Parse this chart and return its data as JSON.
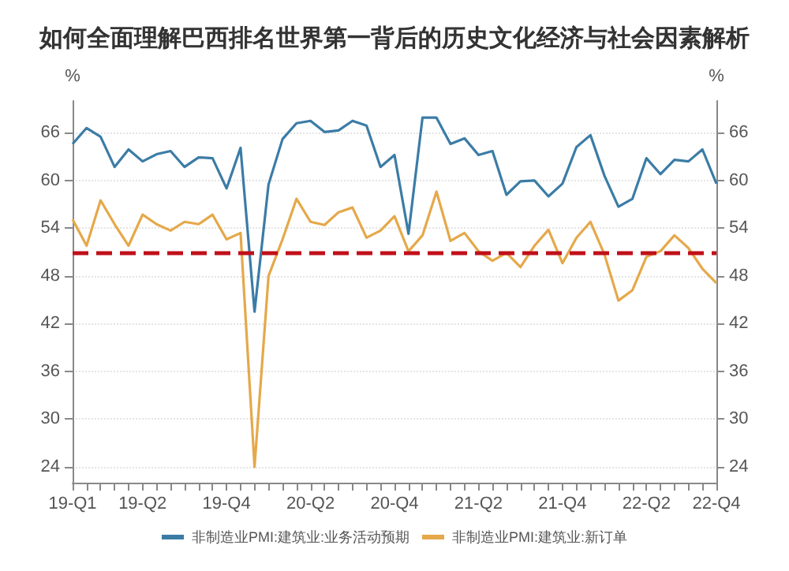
{
  "chart_data": {
    "type": "line",
    "title": "如何全面理解巴西排名世界第一背后的历史文化经济与社会因素解析",
    "ylabel": "%",
    "y2label": "%",
    "categories": [
      "19-Q1",
      null,
      null,
      null,
      null,
      "19-Q2",
      null,
      null,
      null,
      null,
      null,
      "19-Q4",
      null,
      null,
      null,
      null,
      null,
      "20-Q2",
      null,
      null,
      null,
      null,
      null,
      "20-Q4",
      null,
      null,
      null,
      null,
      null,
      "21-Q2",
      null,
      null,
      null,
      null,
      null,
      "21-Q4",
      null,
      null,
      null,
      null,
      null,
      "22-Q2",
      null,
      null,
      null,
      null,
      "22-Q4"
    ],
    "series": [
      {
        "name": "非制造业PMI:建筑业:业务活动预期",
        "color": "#3b7ca6",
        "values": [
          64.6,
          66.6,
          65.5,
          61.7,
          63.9,
          62.4,
          63.3,
          63.7,
          61.7,
          62.9,
          62.8,
          59,
          64.1,
          43.5,
          59.5,
          65.2,
          67.2,
          67.5,
          66.1,
          66.3,
          67.5,
          66.9,
          61.7,
          63.2,
          53.3,
          67.9,
          67.9,
          64.6,
          65.3,
          63.2,
          63.7,
          58.2,
          59.9,
          60,
          58,
          59.6,
          64.2,
          65.7,
          60.6,
          56.7,
          57.7,
          62.8,
          60.8,
          62.6,
          62.4,
          63.9,
          59.6
        ]
      },
      {
        "name": "非制造业PMI:建筑业:新订单",
        "color": "#e5a84a",
        "values": [
          55.1,
          51.8,
          57.5,
          54.5,
          51.8,
          55.7,
          54.5,
          53.7,
          54.8,
          54.5,
          55.7,
          52.6,
          53.4,
          24,
          48,
          52.6,
          57.7,
          54.8,
          54.4,
          56,
          56.6,
          52.8,
          53.7,
          55.5,
          51.1,
          53.1,
          58.6,
          52.4,
          53.4,
          51.1,
          49.9,
          50.9,
          49.1,
          51.8,
          53.8,
          49.6,
          52.8,
          54.8,
          50.7,
          44.9,
          46.2,
          50.4,
          51.1,
          53.1,
          51.5,
          48.9,
          47.1
        ]
      }
    ],
    "ylim": [
      22,
      70
    ],
    "yticks": [
      24,
      30,
      36,
      42,
      48,
      54,
      60,
      66
    ],
    "y2lim": [
      22,
      70
    ],
    "y2ticks": [
      24,
      30,
      36,
      42,
      48,
      54,
      60,
      66
    ],
    "ref_lines": [
      {
        "axis": "y",
        "value": 51,
        "color": "#c0101a",
        "line_style": "dashed"
      }
    ],
    "grid": "y",
    "legend": "bottom",
    "marker": "none",
    "line_style": "solid"
  }
}
